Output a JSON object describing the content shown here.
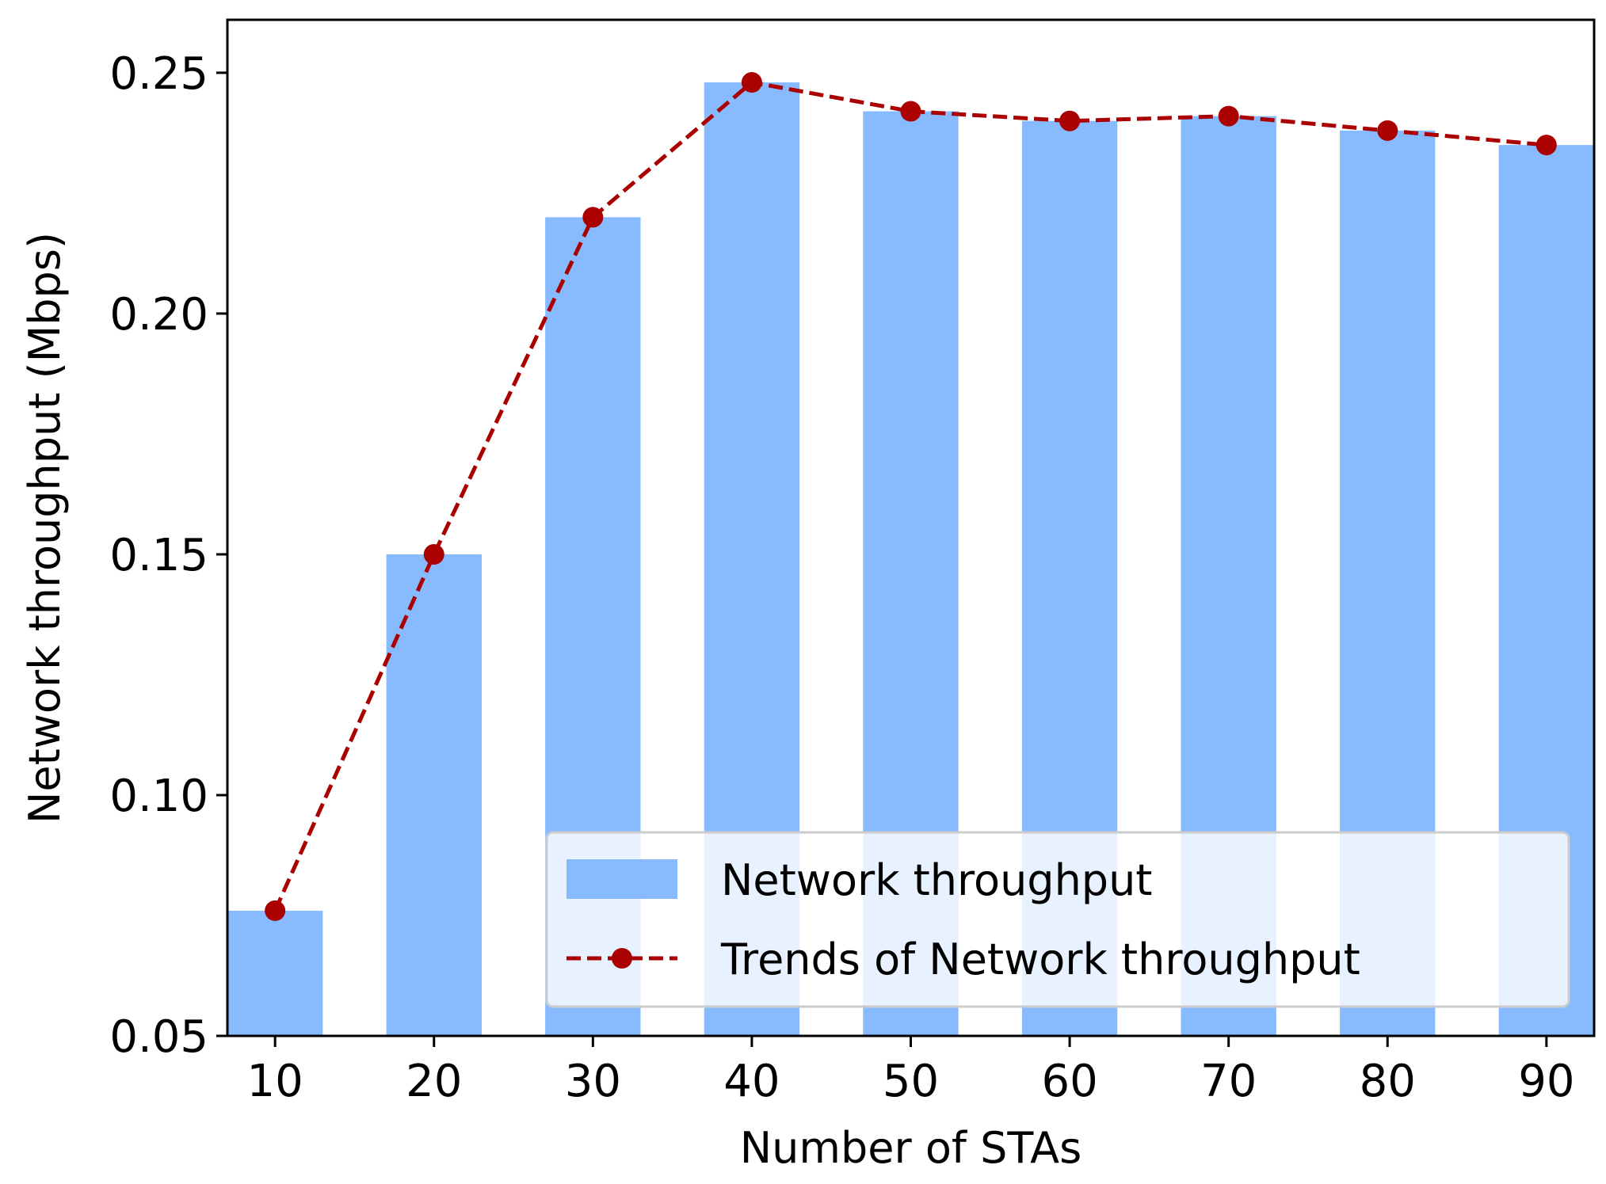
{
  "chart_data": {
    "type": "bar",
    "xlabel": "Number of STAs",
    "ylabel": "Network throughput (Mbps)",
    "categories": [
      "10",
      "20",
      "30",
      "40",
      "50",
      "60",
      "70",
      "80",
      "90"
    ],
    "x": [
      10,
      20,
      30,
      40,
      50,
      60,
      70,
      80,
      90
    ],
    "xlim": [
      7,
      93
    ],
    "ylim": [
      0.05,
      0.261
    ],
    "yticks": [
      0.05,
      0.1,
      0.15,
      0.2,
      0.25
    ],
    "ytick_labels": [
      "0.05",
      "0.10",
      "0.15",
      "0.20",
      "0.25"
    ],
    "grid": false,
    "legend_position": "lower-right",
    "series": [
      {
        "name": "Network throughput",
        "kind": "bar",
        "color": "#87baff",
        "values": [
          0.076,
          0.15,
          0.22,
          0.248,
          0.242,
          0.24,
          0.241,
          0.238,
          0.235
        ]
      },
      {
        "name": "Trends of Network throughput",
        "kind": "line",
        "style": "dashed",
        "marker": "circle",
        "color": "#aa0000",
        "values": [
          0.076,
          0.15,
          0.22,
          0.248,
          0.242,
          0.24,
          0.241,
          0.238,
          0.235
        ]
      }
    ]
  }
}
